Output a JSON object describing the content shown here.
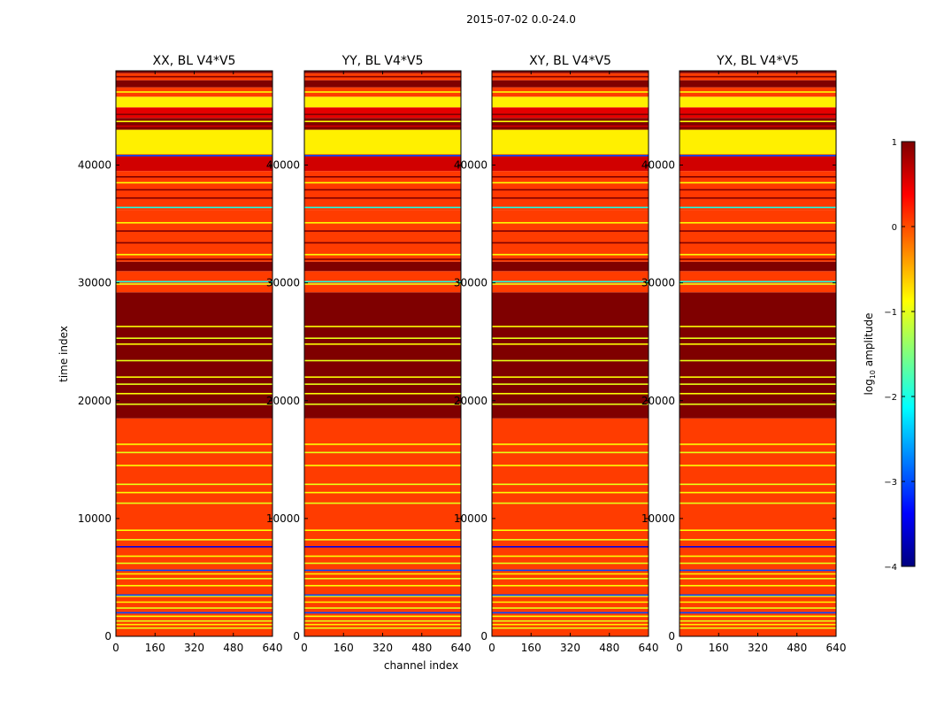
{
  "chart_data": {
    "type": "heatmap",
    "suptitle": "2015-07-02 0.0-24.0",
    "xlabel": "channel index",
    "ylabel": "time index",
    "xlim": [
      0,
      640
    ],
    "ylim": [
      0,
      48000
    ],
    "xticks": [
      0,
      160,
      320,
      480,
      640
    ],
    "yticks": [
      0,
      10000,
      20000,
      30000,
      40000
    ],
    "xtick_labels": [
      "0",
      "160",
      "320",
      "480",
      "640"
    ],
    "ytick_labels": [
      "0",
      "10000",
      "20000",
      "30000",
      "40000"
    ],
    "panels": [
      {
        "title": "XX, BL V4*V5"
      },
      {
        "title": "YY, BL V4*V5"
      },
      {
        "title": "XY, BL V4*V5"
      },
      {
        "title": "YX, BL V4*V5"
      }
    ],
    "colormap": "jet",
    "colorbar": {
      "label_prefix": "log",
      "label_subscript": "10",
      "label_suffix": " amplitude",
      "range": [
        -4,
        1
      ],
      "ticks": [
        1,
        0,
        -1,
        -2,
        -3,
        -4
      ],
      "tick_labels": [
        "1",
        "0",
        "−1",
        "−2",
        "−3",
        "−4"
      ],
      "colors": [
        "#00007f",
        "#0000ff",
        "#007fff",
        "#00ffff",
        "#7fff7f",
        "#ffff00",
        "#ff7f00",
        "#ff0000",
        "#7f0000"
      ]
    },
    "bands": [
      {
        "from": 0,
        "to": 18500,
        "value": 0.08
      },
      {
        "from": 18500,
        "to": 29200,
        "value": 1.0
      },
      {
        "from": 29200,
        "to": 31000,
        "value": 0.08
      },
      {
        "from": 31000,
        "to": 31800,
        "value": 1.0
      },
      {
        "from": 31800,
        "to": 36200,
        "value": 0.08
      },
      {
        "from": 36200,
        "to": 39500,
        "value": 0.1
      },
      {
        "from": 39500,
        "to": 40900,
        "value": 0.6
      },
      {
        "from": 40900,
        "to": 43000,
        "value": -0.8
      },
      {
        "from": 43000,
        "to": 44000,
        "value": 1.0
      },
      {
        "from": 44000,
        "to": 44900,
        "value": 0.5
      },
      {
        "from": 44900,
        "to": 45800,
        "value": -0.8
      },
      {
        "from": 45800,
        "to": 46600,
        "value": 0.08
      },
      {
        "from": 46600,
        "to": 47200,
        "value": 1.0
      },
      {
        "from": 47200,
        "to": 47800,
        "value": 0.08
      },
      {
        "from": 47800,
        "to": 48000,
        "value": 1.0
      }
    ],
    "stripes": [
      {
        "t": 700,
        "value": -1.0
      },
      {
        "t": 1000,
        "value": -0.8
      },
      {
        "t": 1300,
        "value": -1.0
      },
      {
        "t": 1700,
        "value": -0.9
      },
      {
        "t": 2000,
        "value": -3.0
      },
      {
        "t": 2400,
        "value": -1.0
      },
      {
        "t": 2900,
        "value": -0.8
      },
      {
        "t": 3400,
        "value": -1.0
      },
      {
        "t": 3500,
        "value": -3.0
      },
      {
        "t": 4300,
        "value": -0.9
      },
      {
        "t": 4900,
        "value": -1.0
      },
      {
        "t": 5300,
        "value": -0.8
      },
      {
        "t": 5600,
        "value": -3.0
      },
      {
        "t": 6200,
        "value": -1.0
      },
      {
        "t": 6800,
        "value": -0.9
      },
      {
        "t": 7600,
        "value": -3.5
      },
      {
        "t": 8200,
        "value": -1.0
      },
      {
        "t": 9000,
        "value": -0.9
      },
      {
        "t": 11300,
        "value": -1.0
      },
      {
        "t": 12200,
        "value": -0.9
      },
      {
        "t": 12900,
        "value": -1.0
      },
      {
        "t": 14500,
        "value": -0.9
      },
      {
        "t": 15600,
        "value": -1.0
      },
      {
        "t": 16300,
        "value": -0.9
      },
      {
        "t": 19700,
        "value": -1.0
      },
      {
        "t": 20600,
        "value": -0.9
      },
      {
        "t": 21400,
        "value": -1.0
      },
      {
        "t": 22000,
        "value": -0.9
      },
      {
        "t": 23400,
        "value": -1.0
      },
      {
        "t": 24800,
        "value": -0.9
      },
      {
        "t": 25300,
        "value": -1.0
      },
      {
        "t": 26300,
        "value": -0.9
      },
      {
        "t": 29900,
        "value": -1.0
      },
      {
        "t": 30100,
        "value": -2.0
      },
      {
        "t": 32000,
        "value": 1.0
      },
      {
        "t": 32400,
        "value": -0.9
      },
      {
        "t": 33400,
        "value": 1.0
      },
      {
        "t": 34400,
        "value": 1.0
      },
      {
        "t": 35100,
        "value": -0.9
      },
      {
        "t": 36400,
        "value": -2.0
      },
      {
        "t": 37200,
        "value": 1.0
      },
      {
        "t": 37900,
        "value": 1.0
      },
      {
        "t": 38500,
        "value": -0.9
      },
      {
        "t": 39000,
        "value": 1.0
      },
      {
        "t": 40800,
        "value": -3.0
      },
      {
        "t": 43300,
        "value": 0.6
      },
      {
        "t": 43700,
        "value": -0.9
      },
      {
        "t": 44300,
        "value": 1.0
      },
      {
        "t": 46200,
        "value": -0.9
      },
      {
        "t": 47500,
        "value": 1.0
      }
    ]
  }
}
